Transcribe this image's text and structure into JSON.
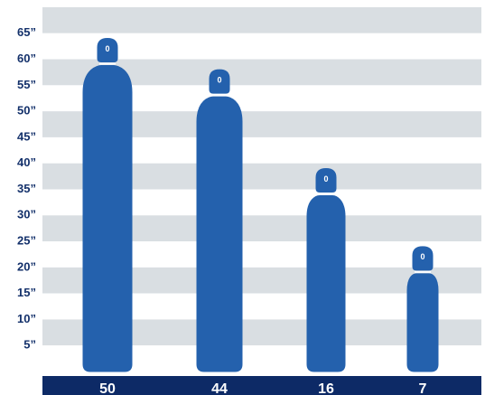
{
  "chart_data": {
    "type": "cylinder",
    "categories": [
      "50",
      "44",
      "16",
      "7"
    ],
    "values": [
      64,
      58,
      39,
      24
    ],
    "valve_labels": [
      "0",
      "0",
      "0",
      "0"
    ],
    "color": "#2461ad",
    "ylim": [
      0,
      70
    ],
    "yticks": [
      {
        "value": 5,
        "label": "5”"
      },
      {
        "value": 10,
        "label": "10”"
      },
      {
        "value": 15,
        "label": "15”"
      },
      {
        "value": 20,
        "label": "20”"
      },
      {
        "value": 25,
        "label": "25”"
      },
      {
        "value": 30,
        "label": "30”"
      },
      {
        "value": 35,
        "label": "35”"
      },
      {
        "value": 40,
        "label": "40”"
      },
      {
        "value": 45,
        "label": "45”"
      },
      {
        "value": 50,
        "label": "50”"
      },
      {
        "value": 55,
        "label": "55”"
      },
      {
        "value": 60,
        "label": "60”"
      },
      {
        "value": 65,
        "label": "65”"
      }
    ],
    "grid": true
  }
}
